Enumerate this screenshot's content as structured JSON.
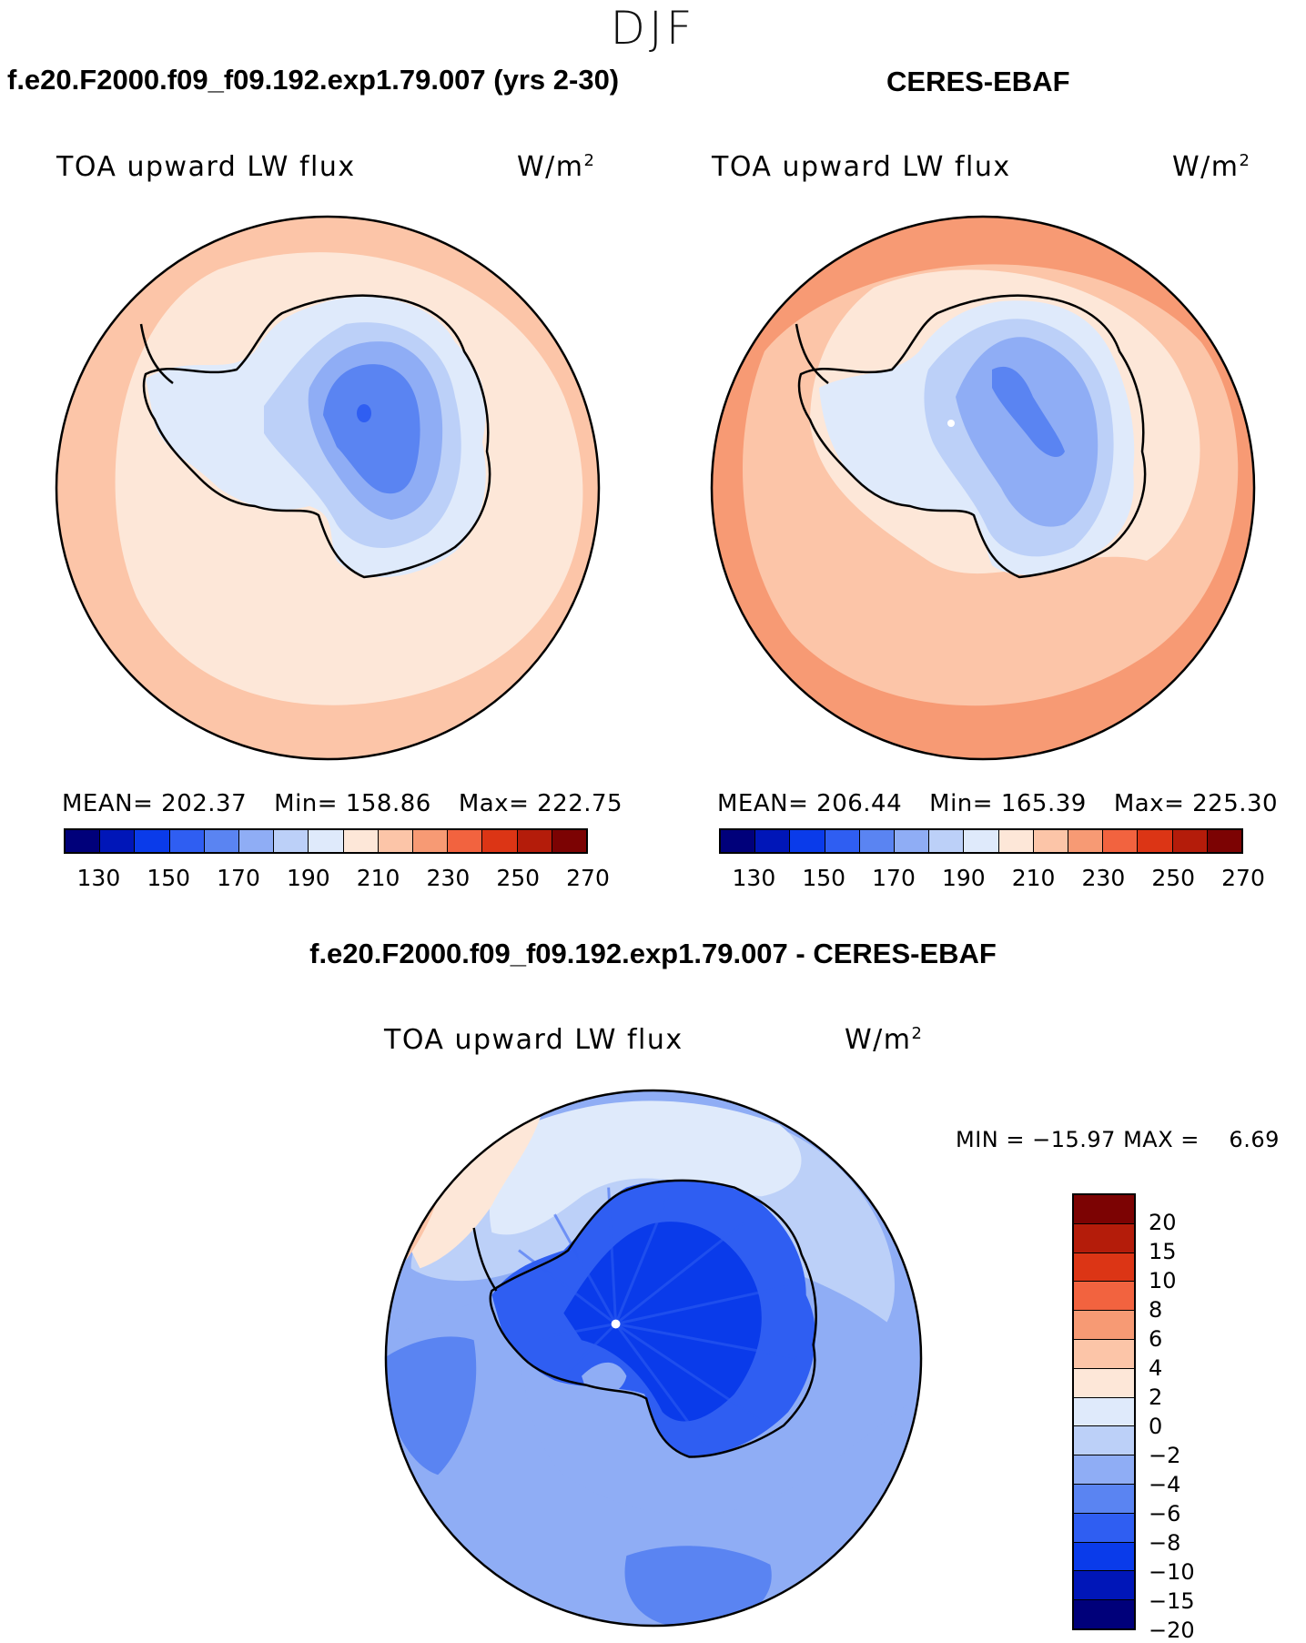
{
  "season": "DJF",
  "panels": {
    "model": {
      "title": "f.e20.F2000.f09_f09.192.exp1.79.007 (yrs 2-30)",
      "variable": "TOA upward LW flux",
      "units_base": "W/m",
      "units_exp": "2",
      "mean_label": "MEAN=",
      "mean": "202.37",
      "min_label": "Min=",
      "min": "158.86",
      "max_label": "Max=",
      "max": "222.75"
    },
    "obs": {
      "title": "CERES-EBAF",
      "variable": "TOA upward LW flux",
      "units_base": "W/m",
      "units_exp": "2",
      "mean_label": "MEAN=",
      "mean": "206.44",
      "min_label": "Min=",
      "min": "165.39",
      "max_label": "Max=",
      "max": "225.30"
    },
    "diff": {
      "title": "f.e20.F2000.f09_f09.192.exp1.79.007 - CERES-EBAF",
      "variable": "TOA upward LW flux",
      "units_base": "W/m",
      "units_exp": "2",
      "min_label": "MIN =",
      "min": "−15.97",
      "max_label": "MAX =",
      "max": "6.69"
    }
  },
  "abs_colorbar": {
    "colors": [
      "#00007a",
      "#0016b8",
      "#0a3bea",
      "#2f5ef2",
      "#5a84f2",
      "#8fadf5",
      "#bcd0f8",
      "#dfeafb",
      "#fde7d8",
      "#fcc5a8",
      "#f79a74",
      "#f2633f",
      "#dc3515",
      "#b41c0a",
      "#7c0303"
    ],
    "ticks": [
      "130",
      "150",
      "170",
      "190",
      "210",
      "230",
      "250",
      "270"
    ]
  },
  "diff_colorbar": {
    "colors": [
      "#7c0303",
      "#b41c0a",
      "#dc3515",
      "#f2633f",
      "#f79a74",
      "#fcc5a8",
      "#fde7d8",
      "#dfeafb",
      "#bcd0f8",
      "#8fadf5",
      "#5a84f2",
      "#2f5ef2",
      "#0a3bea",
      "#0016b8",
      "#00007a"
    ],
    "ticks": [
      "20",
      "15",
      "10",
      "8",
      "6",
      "4",
      "2",
      "0",
      "−2",
      "−4",
      "−6",
      "−8",
      "−10",
      "−15",
      "−20"
    ]
  }
}
